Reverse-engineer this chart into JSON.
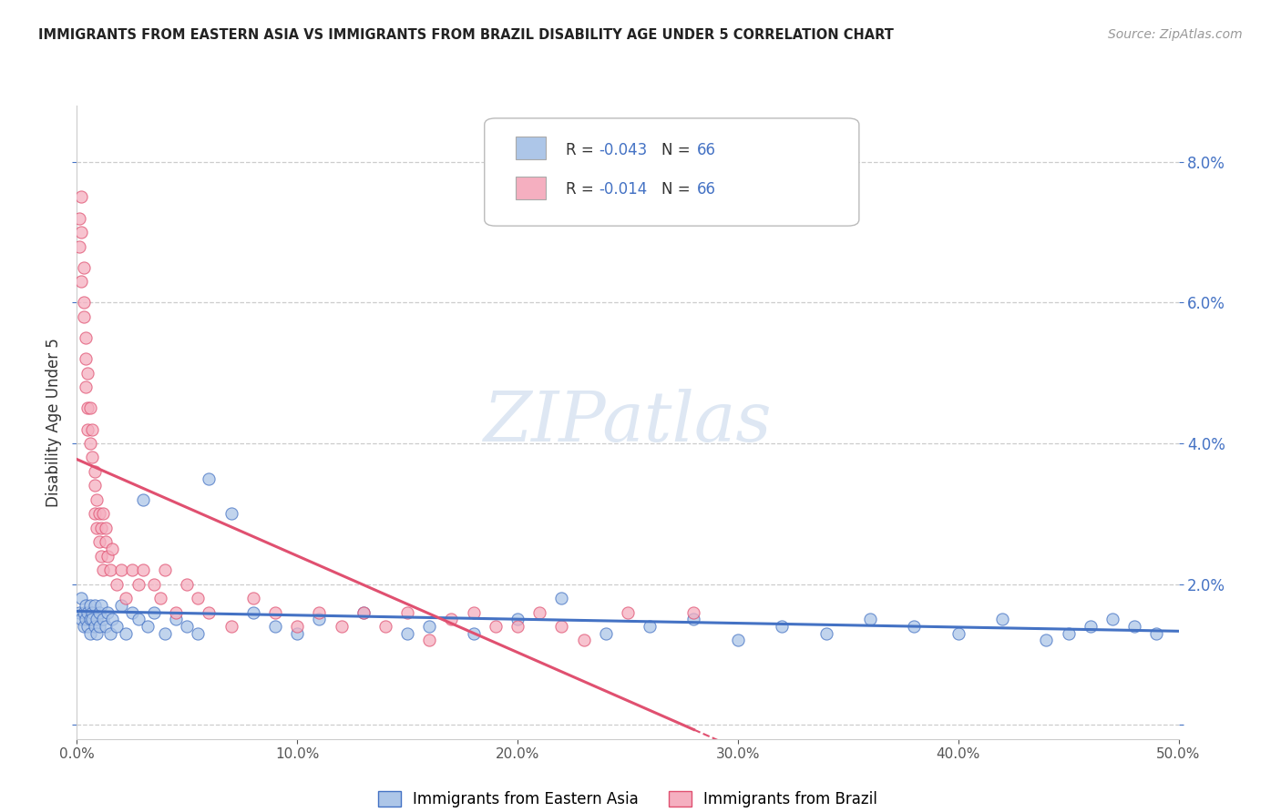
{
  "title": "IMMIGRANTS FROM EASTERN ASIA VS IMMIGRANTS FROM BRAZIL DISABILITY AGE UNDER 5 CORRELATION CHART",
  "source": "Source: ZipAtlas.com",
  "ylabel": "Disability Age Under 5",
  "xlim": [
    0.0,
    0.5
  ],
  "ylim": [
    -0.002,
    0.088
  ],
  "yticks": [
    0.0,
    0.02,
    0.04,
    0.06,
    0.08
  ],
  "xticks": [
    0.0,
    0.1,
    0.2,
    0.3,
    0.4,
    0.5
  ],
  "legend_r_eastern": "-0.043",
  "legend_n_eastern": "66",
  "legend_r_brazil": "-0.014",
  "legend_n_brazil": "66",
  "color_eastern": "#adc6e8",
  "color_brazil": "#f5afc0",
  "color_eastern_line": "#4472c4",
  "color_brazil_line": "#e05070",
  "watermark": "ZIPatlas",
  "eastern_x": [
    0.001,
    0.002,
    0.002,
    0.003,
    0.003,
    0.004,
    0.004,
    0.005,
    0.005,
    0.006,
    0.006,
    0.006,
    0.007,
    0.007,
    0.008,
    0.008,
    0.009,
    0.009,
    0.01,
    0.01,
    0.011,
    0.012,
    0.013,
    0.014,
    0.015,
    0.016,
    0.018,
    0.02,
    0.022,
    0.025,
    0.028,
    0.03,
    0.032,
    0.035,
    0.04,
    0.045,
    0.05,
    0.055,
    0.06,
    0.07,
    0.08,
    0.09,
    0.1,
    0.11,
    0.13,
    0.15,
    0.16,
    0.18,
    0.2,
    0.22,
    0.24,
    0.26,
    0.28,
    0.3,
    0.32,
    0.34,
    0.36,
    0.38,
    0.4,
    0.42,
    0.44,
    0.45,
    0.46,
    0.47,
    0.48,
    0.49
  ],
  "eastern_y": [
    0.016,
    0.015,
    0.018,
    0.014,
    0.016,
    0.015,
    0.017,
    0.016,
    0.014,
    0.015,
    0.017,
    0.013,
    0.016,
    0.015,
    0.014,
    0.017,
    0.015,
    0.013,
    0.016,
    0.014,
    0.017,
    0.015,
    0.014,
    0.016,
    0.013,
    0.015,
    0.014,
    0.017,
    0.013,
    0.016,
    0.015,
    0.032,
    0.014,
    0.016,
    0.013,
    0.015,
    0.014,
    0.013,
    0.035,
    0.03,
    0.016,
    0.014,
    0.013,
    0.015,
    0.016,
    0.013,
    0.014,
    0.013,
    0.015,
    0.018,
    0.013,
    0.014,
    0.015,
    0.012,
    0.014,
    0.013,
    0.015,
    0.014,
    0.013,
    0.015,
    0.012,
    0.013,
    0.014,
    0.015,
    0.014,
    0.013
  ],
  "brazil_x": [
    0.001,
    0.001,
    0.002,
    0.002,
    0.002,
    0.003,
    0.003,
    0.003,
    0.004,
    0.004,
    0.004,
    0.005,
    0.005,
    0.005,
    0.006,
    0.006,
    0.007,
    0.007,
    0.008,
    0.008,
    0.008,
    0.009,
    0.009,
    0.01,
    0.01,
    0.011,
    0.011,
    0.012,
    0.012,
    0.013,
    0.013,
    0.014,
    0.015,
    0.016,
    0.018,
    0.02,
    0.022,
    0.025,
    0.028,
    0.03,
    0.035,
    0.038,
    0.04,
    0.045,
    0.05,
    0.055,
    0.06,
    0.07,
    0.08,
    0.09,
    0.1,
    0.11,
    0.12,
    0.13,
    0.14,
    0.15,
    0.16,
    0.17,
    0.18,
    0.19,
    0.2,
    0.21,
    0.22,
    0.23,
    0.25,
    0.28
  ],
  "brazil_y": [
    0.072,
    0.068,
    0.075,
    0.063,
    0.07,
    0.058,
    0.065,
    0.06,
    0.052,
    0.048,
    0.055,
    0.045,
    0.05,
    0.042,
    0.04,
    0.045,
    0.038,
    0.042,
    0.036,
    0.03,
    0.034,
    0.028,
    0.032,
    0.026,
    0.03,
    0.028,
    0.024,
    0.03,
    0.022,
    0.026,
    0.028,
    0.024,
    0.022,
    0.025,
    0.02,
    0.022,
    0.018,
    0.022,
    0.02,
    0.022,
    0.02,
    0.018,
    0.022,
    0.016,
    0.02,
    0.018,
    0.016,
    0.014,
    0.018,
    0.016,
    0.014,
    0.016,
    0.014,
    0.016,
    0.014,
    0.016,
    0.012,
    0.015,
    0.016,
    0.014,
    0.014,
    0.016,
    0.014,
    0.012,
    0.016,
    0.016
  ]
}
